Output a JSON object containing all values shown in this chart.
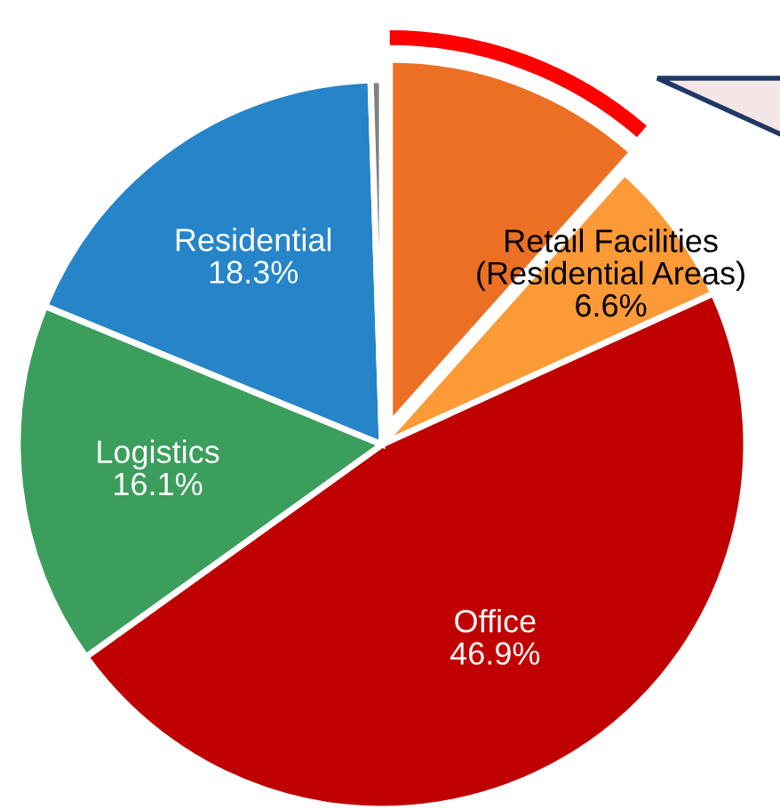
{
  "chart_data": {
    "type": "pie",
    "categories": [
      null,
      "Retail Facilities (Residential Areas)",
      "Office",
      "Logistics",
      "Residential",
      null
    ],
    "values": [
      11.6,
      6.6,
      46.9,
      16.1,
      18.3,
      0.5
    ],
    "colors": [
      "#ec7023",
      "#fb9a36",
      "#c00000",
      "#3b9e5c",
      "#2684c8",
      "#808080"
    ],
    "value_labels": [
      null,
      "6.6%",
      "46.9%",
      "16.1%",
      "18.3%",
      null
    ],
    "legend": false
  }
}
